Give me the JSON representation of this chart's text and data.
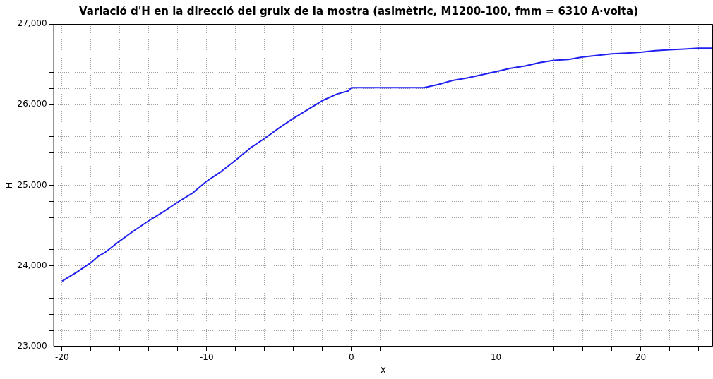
{
  "chart_data": {
    "type": "line",
    "title": "Variació d'H en la direcció del gruix de la mostra (asimètric, M1200-100, fmm = 6310 A·volta)",
    "xlabel": "X",
    "ylabel": "H",
    "x": [
      -20,
      -19,
      -18,
      -17.5,
      -17,
      -16,
      -15,
      -14,
      -13,
      -12,
      -11,
      -10,
      -9,
      -8,
      -7,
      -6,
      -5,
      -4,
      -3,
      -2,
      -1,
      -0.2,
      0,
      5,
      6,
      7,
      8,
      9,
      10,
      11,
      12,
      13,
      14,
      15,
      16,
      17,
      18,
      19,
      20,
      21,
      22,
      23,
      24,
      25
    ],
    "series": [
      {
        "color": "#2020f0",
        "values": [
          23810,
          23920,
          24040,
          24120,
          24170,
          24310,
          24440,
          24560,
          24670,
          24790,
          24900,
          25050,
          25170,
          25310,
          25460,
          25580,
          25710,
          25830,
          25940,
          26050,
          26130,
          26170,
          26210,
          26210,
          26250,
          26300,
          26330,
          26370,
          26410,
          26450,
          26480,
          26520,
          26550,
          26560,
          26590,
          26610,
          26630,
          26640,
          26650,
          26670,
          26680,
          26690,
          26700,
          26700
        ]
      }
    ],
    "xlim": [
      -20.6,
      25
    ],
    "xticks": [
      -20,
      {
        "value": -18,
        "label": null
      },
      {
        "value": -16,
        "label": null
      },
      {
        "value": -14,
        "label": null
      },
      {
        "value": -12,
        "label": null
      },
      -10,
      {
        "value": -8,
        "label": null
      },
      {
        "value": -6,
        "label": null
      },
      {
        "value": -4,
        "label": null
      },
      {
        "value": -2,
        "label": null
      },
      0,
      {
        "value": 2,
        "label": null
      },
      {
        "value": 4,
        "label": null
      },
      {
        "value": 6,
        "label": null
      },
      {
        "value": 8,
        "label": null
      },
      10,
      {
        "value": 12,
        "label": null
      },
      {
        "value": 14,
        "label": null
      },
      {
        "value": 16,
        "label": null
      },
      {
        "value": 18,
        "label": null
      },
      20,
      {
        "value": 22,
        "label": null
      },
      {
        "value": 24,
        "label": null
      }
    ],
    "ylim": [
      23000,
      27000
    ],
    "yticks": [
      {
        "value": 23000,
        "label": "23,000"
      },
      {
        "value": 23200,
        "label": null
      },
      {
        "value": 23400,
        "label": null
      },
      {
        "value": 23600,
        "label": null
      },
      {
        "value": 23800,
        "label": null
      },
      {
        "value": 24000,
        "label": "24,000"
      },
      {
        "value": 24200,
        "label": null
      },
      {
        "value": 24400,
        "label": null
      },
      {
        "value": 24600,
        "label": null
      },
      {
        "value": 24800,
        "label": null
      },
      {
        "value": 25000,
        "label": "25,000"
      },
      {
        "value": 25200,
        "label": null
      },
      {
        "value": 25400,
        "label": null
      },
      {
        "value": 25600,
        "label": null
      },
      {
        "value": 25800,
        "label": null
      },
      {
        "value": 26000,
        "label": "26,000"
      },
      {
        "value": 26200,
        "label": null
      },
      {
        "value": 26400,
        "label": null
      },
      {
        "value": 26600,
        "label": null
      },
      {
        "value": 26800,
        "label": null
      },
      {
        "value": 27000,
        "label": "27,000"
      }
    ],
    "grid": true,
    "legend": false,
    "marker": "none",
    "line_style": "solid"
  }
}
